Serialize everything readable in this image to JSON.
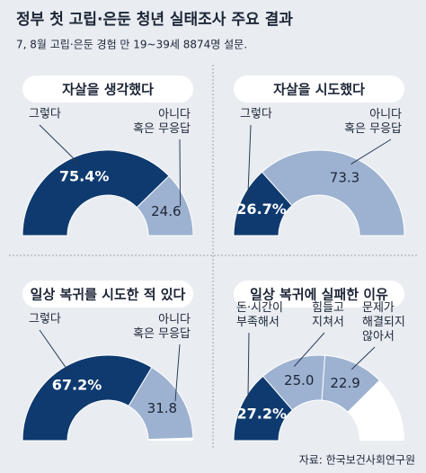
{
  "title": "정부 첫 고립·은둔 청년 실태조사 주요 결과",
  "subtitle": "7, 8월 고립·은둔 경험 만 19~39세 8874명 설문.",
  "source": "자료: 한국보건사회연구원",
  "chart_data": [
    {
      "type": "pie",
      "title": "자살을 생각했다",
      "categories": [
        "그렇다",
        "아니다\n혹은 무응답"
      ],
      "values": [
        75.4,
        24.6
      ],
      "value_labels": [
        "75.4%",
        "24.6"
      ],
      "colors": [
        "#0e3a6f",
        "#9db2d1"
      ]
    },
    {
      "type": "pie",
      "title": "자살을 시도했다",
      "categories": [
        "그렇다",
        "아니다\n혹은 무응답"
      ],
      "values": [
        26.7,
        73.3
      ],
      "value_labels": [
        "26.7%",
        "73.3"
      ],
      "colors": [
        "#0e3a6f",
        "#9db2d1"
      ]
    },
    {
      "type": "pie",
      "title": "일상 복귀를 시도한 적 있다",
      "categories": [
        "그렇다",
        "아니다\n혹은 무응답"
      ],
      "values": [
        67.2,
        31.8
      ],
      "value_labels": [
        "67.2%",
        "31.8"
      ],
      "colors": [
        "#0e3a6f",
        "#9db2d1"
      ]
    },
    {
      "type": "pie",
      "title": "일상 복귀에 실패한 이유",
      "categories": [
        "돈·시간이\n부족해서",
        "힘들고\n지쳐서",
        "문제가\n해결되지\n않아서"
      ],
      "values": [
        27.2,
        25.0,
        22.9
      ],
      "value_labels": [
        "27.2%",
        "25.0",
        "22.9"
      ],
      "colors": [
        "#0e3a6f",
        "#9db2d1",
        "#9db2d1"
      ]
    }
  ]
}
